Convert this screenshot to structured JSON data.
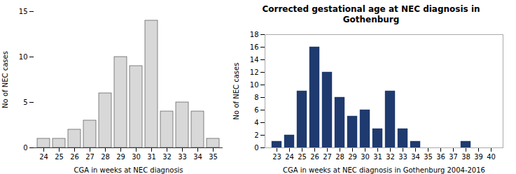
{
  "chart_data": [
    {
      "type": "bar",
      "categories": [
        24,
        25,
        26,
        27,
        28,
        29,
        30,
        31,
        32,
        33,
        34,
        35
      ],
      "values": [
        1,
        1,
        2,
        3,
        6,
        10,
        9,
        14,
        4,
        5,
        4,
        1
      ],
      "color": "#d8d8d8",
      "xlabel": "CGA in weeks at NEC diagnosis",
      "ylabel": "No of NEC cases",
      "ylim": [
        0,
        15
      ],
      "yticks": [
        0,
        5,
        10,
        15
      ]
    },
    {
      "type": "bar",
      "title": "Corrected gestational age at NEC diagnosis in\nGothenburg",
      "categories": [
        23,
        24,
        25,
        26,
        27,
        28,
        29,
        30,
        31,
        32,
        33,
        34,
        35,
        36,
        37,
        38,
        39,
        40
      ],
      "values": [
        1,
        2,
        9,
        16,
        12,
        8,
        5,
        6,
        3,
        9,
        3,
        1,
        0,
        0,
        0,
        1,
        0,
        0
      ],
      "color": "#1f3a6e",
      "xlabel": "CGA in weeks at NEC diagnosis in Gothenburg 2004-2016",
      "ylabel": "No of NEC cases",
      "ylim": [
        0,
        18
      ],
      "yticks": [
        0,
        2,
        4,
        6,
        8,
        10,
        12,
        14,
        16,
        18
      ]
    }
  ]
}
